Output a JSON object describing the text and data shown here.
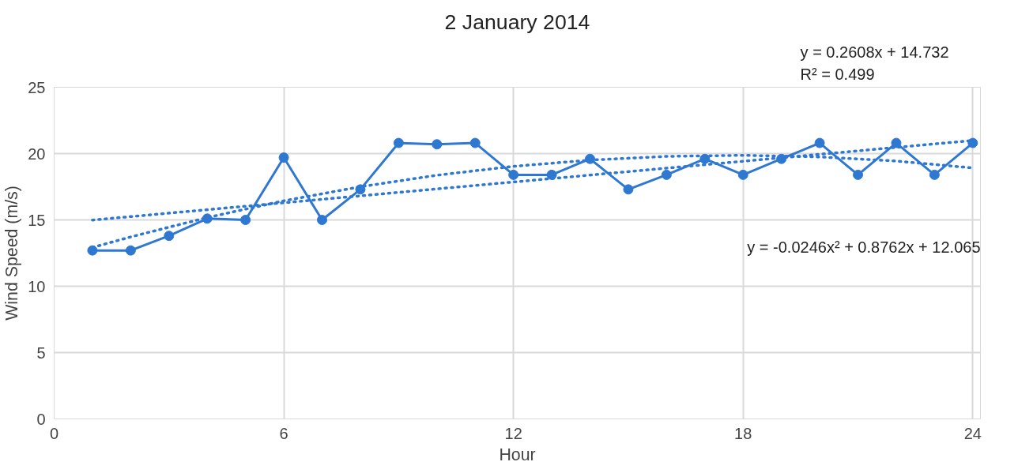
{
  "chart_data": {
    "type": "line",
    "title": "2 January 2014",
    "xlabel": "Hour",
    "ylabel": "Wind Speed (m/s)",
    "x": [
      1,
      2,
      3,
      4,
      5,
      6,
      7,
      8,
      9,
      10,
      11,
      12,
      13,
      14,
      15,
      16,
      17,
      18,
      19,
      20,
      21,
      22,
      23,
      24
    ],
    "xlim": [
      0,
      24.2
    ],
    "xticks": [
      0,
      6,
      12,
      18,
      24
    ],
    "ylim": [
      0,
      25
    ],
    "yticks": [
      0,
      5,
      10,
      15,
      20,
      25
    ],
    "grid": true,
    "marker": "circle",
    "series": [
      {
        "color": "#2f78d2",
        "line_style": "solid",
        "values": [
          12.7,
          12.7,
          13.8,
          15.1,
          15.0,
          19.7,
          15.0,
          17.3,
          20.8,
          20.7,
          20.8,
          18.4,
          18.4,
          19.6,
          17.3,
          18.4,
          19.6,
          18.4,
          19.6,
          20.8,
          18.4,
          20.8,
          18.4,
          20.8
        ]
      },
      {
        "type": "line",
        "color": "#2f78d2",
        "marker": "none",
        "line_style": "dotted",
        "x": [
          1,
          24
        ],
        "values": [
          14.99,
          20.99
        ]
      },
      {
        "type": "line",
        "color": "#2f78d2",
        "marker": "none",
        "line_style": "dotted",
        "x": [
          1,
          2,
          4,
          6,
          8,
          10,
          12,
          14,
          16,
          18,
          20,
          22,
          24
        ],
        "values": [
          12.92,
          13.72,
          15.18,
          16.44,
          17.5,
          18.37,
          19.04,
          19.51,
          19.79,
          19.87,
          19.75,
          19.44,
          18.92
        ]
      }
    ],
    "annotations": [
      "y = 0.2608x + 14.732\nR² = 0.499",
      "y = -0.0246x² + 0.8762x + 12.065"
    ]
  }
}
